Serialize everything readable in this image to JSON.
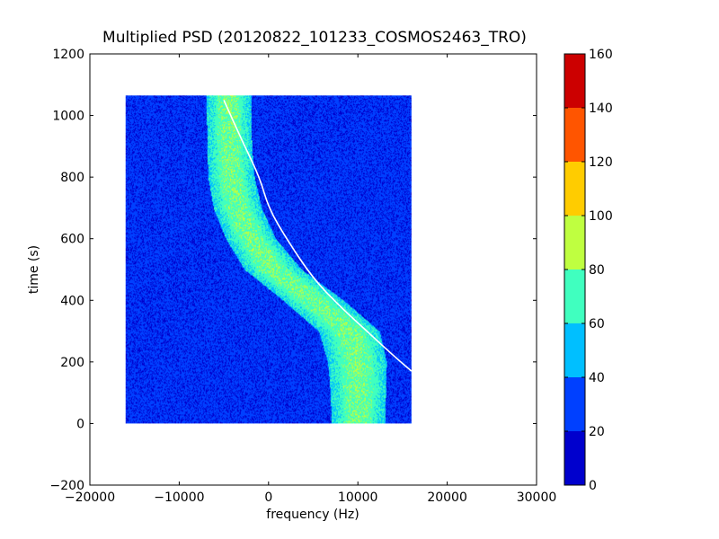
{
  "chart_data": {
    "type": "heatmap",
    "title": "Multiplied PSD (20120822_101233_COSMOS2463_TRO)",
    "xlabel": "frequency (Hz)",
    "ylabel": "time (s)",
    "xlim": [
      -20000,
      30000
    ],
    "ylim": [
      -200,
      1200
    ],
    "xticks": [
      -20000,
      -10000,
      0,
      10000,
      20000,
      30000
    ],
    "xtick_labels": [
      "−20000",
      "−10000",
      "0",
      "10000",
      "20000",
      "30000"
    ],
    "yticks": [
      -200,
      0,
      200,
      400,
      600,
      800,
      1000,
      1200
    ],
    "ytick_labels": [
      "−200",
      "0",
      "200",
      "400",
      "600",
      "800",
      "1000",
      "1200"
    ],
    "grid": false,
    "data_extent": {
      "x": [
        -16000,
        16000
      ],
      "y": [
        0,
        1065
      ]
    },
    "background_level": 25,
    "doppler_band": {
      "points": [
        {
          "time": 0,
          "center_hz": 10000,
          "half_width_hz": 3000
        },
        {
          "time": 100,
          "center_hz": 10000,
          "half_width_hz": 3100
        },
        {
          "time": 200,
          "center_hz": 9900,
          "half_width_hz": 3300
        },
        {
          "time": 300,
          "center_hz": 9000,
          "half_width_hz": 3400
        },
        {
          "time": 400,
          "center_hz": 5000,
          "half_width_hz": 3400
        },
        {
          "time": 500,
          "center_hz": 500,
          "half_width_hz": 3200
        },
        {
          "time": 600,
          "center_hz": -2000,
          "half_width_hz": 2800
        },
        {
          "time": 700,
          "center_hz": -3500,
          "half_width_hz": 2700
        },
        {
          "time": 800,
          "center_hz": -4200,
          "half_width_hz": 2600
        },
        {
          "time": 900,
          "center_hz": -4400,
          "half_width_hz": 2500
        },
        {
          "time": 1065,
          "center_hz": -4500,
          "half_width_hz": 2500
        }
      ],
      "edge_level": 55,
      "core_level": 78
    },
    "predicted_curve": {
      "color": "#ffffff",
      "points": [
        {
          "frequency": -5000,
          "time": 1050
        },
        {
          "frequency": -3000,
          "time": 920
        },
        {
          "frequency": -1000,
          "time": 800
        },
        {
          "frequency": 0,
          "time": 700
        },
        {
          "frequency": 2000,
          "time": 600
        },
        {
          "frequency": 5000,
          "time": 470
        },
        {
          "frequency": 8000,
          "time": 380
        },
        {
          "frequency": 11000,
          "time": 300
        },
        {
          "frequency": 14000,
          "time": 220
        },
        {
          "frequency": 16000,
          "time": 170
        }
      ]
    },
    "colorbar": {
      "min": 0,
      "max": 160,
      "ticks": [
        0,
        20,
        40,
        60,
        80,
        100,
        120,
        140,
        160
      ],
      "tick_labels": [
        "0",
        "20",
        "40",
        "60",
        "80",
        "100",
        "120",
        "140",
        "160"
      ],
      "bins": [
        {
          "range": [
            0,
            20
          ],
          "color": "#0000cd"
        },
        {
          "range": [
            20,
            40
          ],
          "color": "#0040ff"
        },
        {
          "range": [
            40,
            60
          ],
          "color": "#00bfff"
        },
        {
          "range": [
            60,
            80
          ],
          "color": "#40ffbf"
        },
        {
          "range": [
            80,
            100
          ],
          "color": "#bfff40"
        },
        {
          "range": [
            100,
            120
          ],
          "color": "#ffcc00"
        },
        {
          "range": [
            120,
            140
          ],
          "color": "#ff5500"
        },
        {
          "range": [
            140,
            160
          ],
          "color": "#cc0000"
        }
      ]
    }
  }
}
